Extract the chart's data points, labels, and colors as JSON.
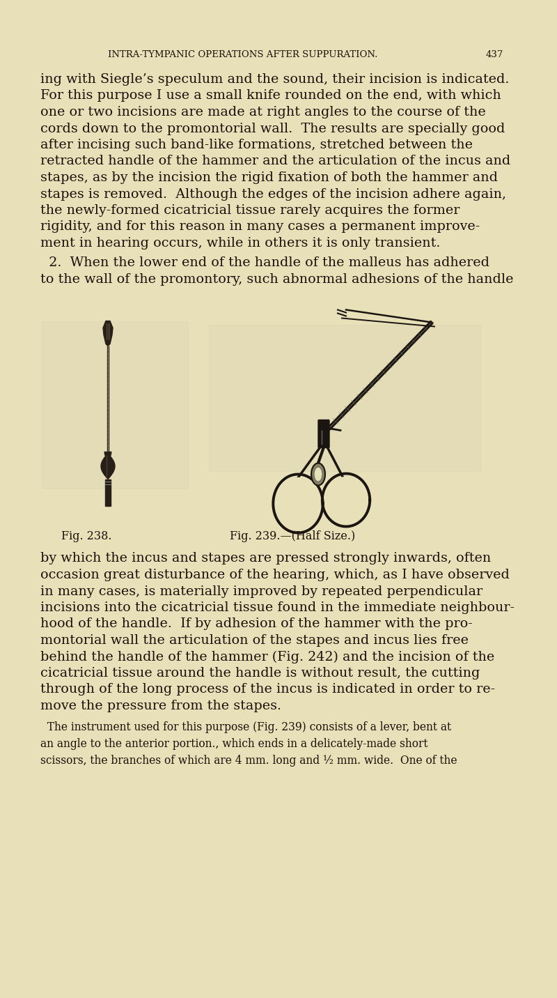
{
  "background_color": "#e8e0b8",
  "text_color": "#1a1008",
  "header_text": "INTRA-TYMPANIC OPERATIONS AFTER SUPPURATION.",
  "page_number": "437",
  "fig_caption_left": "Fig. 238.",
  "fig_caption_right": "Fig. 239.—(Half Size.)",
  "para1_lines": [
    "ing with Siegle’s speculum and the sound, their incision is indicated.",
    "For this purpose I use a small knife rounded on the end, with which",
    "one or two incisions are made at right angles to the course of the",
    "cords down to the promontorial wall.  The results are specially good",
    "after incising such band-like formations, stretched between the",
    "retracted handle of the hammer and the articulation of the incus and",
    "stapes, as by the incision the rigid fixation of both the hammer and",
    "stapes is removed.  Although the edges of the incision adhere again,",
    "the newly-formed cicatricial tissue rarely acquires the former",
    "rigidity, and for this reason in many cases a permanent improve-",
    "ment in hearing occurs, while in others it is only transient."
  ],
  "para2_lines": [
    "  2.  When the lower end of the handle of the malleus has adhered",
    "to the wall of the promontory, such abnormal adhesions of the handle"
  ],
  "para3_lines": [
    "by which the incus and stapes are pressed strongly inwards, often",
    "occasion great disturbance of the hearing, which, as I have observed",
    "in many cases, is materially improved by repeated perpendicular",
    "incisions into the cicatricial tissue found in the immediate neighbour-",
    "hood of the handle.  If by adhesion of the hammer with the pro-",
    "montorial wall the articulation of the stapes and incus lies free",
    "behind the handle of the hammer (Fig. 242) and the incision of the",
    "cicatricial tissue around the handle is without result, the cutting",
    "through of the long process of the incus is indicated in order to re-",
    "move the pressure from the stapes."
  ],
  "para4_lines": [
    "  The instrument used for this purpose (Fig. 239) consists of a lever, bent at",
    "an angle to the anterior portion., which ends in a delicately-made short",
    "scissors, the branches of which are 4 mm. long and ½ mm. wide.  One of the"
  ]
}
